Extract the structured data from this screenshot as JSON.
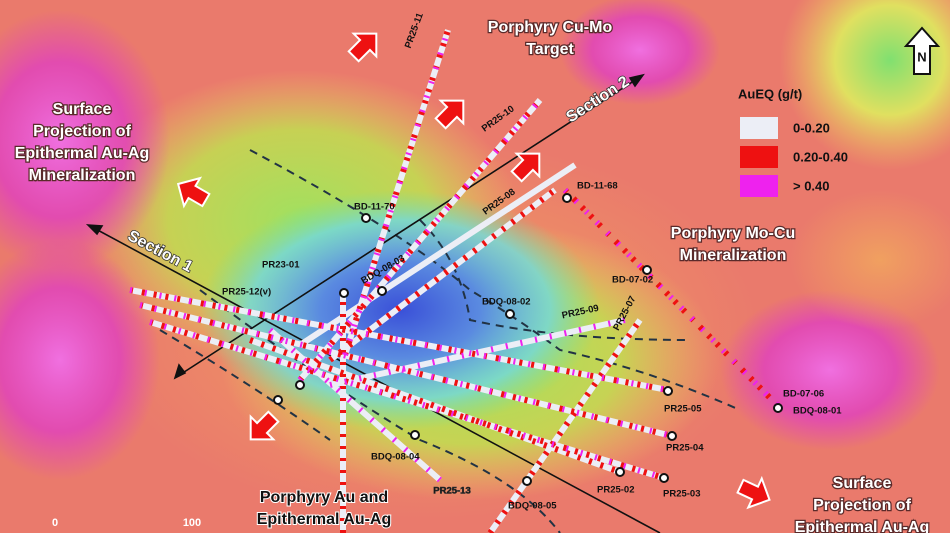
{
  "regions": [
    {
      "lines": [
        "Porphyry Cu-Mo",
        "Target"
      ]
    },
    {
      "lines": [
        "Surface",
        "Projection of",
        "Epithermal Au-Ag",
        "Mineralization"
      ]
    },
    {
      "lines": [
        "Porphyry Mo-Cu",
        "Mineralization"
      ]
    },
    {
      "lines": [
        "Porphyry  Au and",
        "Epithermal Au-Ag"
      ]
    },
    {
      "lines": [
        "Surface",
        "Projection of",
        "Epithermal Au-Ag"
      ]
    }
  ],
  "sections": [
    "Section 1",
    "Section 2"
  ],
  "legend": {
    "title": "AuEQ (g/t)",
    "items": [
      {
        "label": "0-0.20",
        "color": "#eceef6"
      },
      {
        "label": "0.20-0.40",
        "color": "#ee1111"
      },
      {
        "label": "> 0.40",
        "color": "#ee22ee"
      }
    ]
  },
  "north": "N",
  "scale": [
    "0",
    "100"
  ],
  "drill_holes": [
    "PR25-11",
    "PR25-10",
    "PR25-08",
    "BD-11-68",
    "BD-11-70",
    "PR23-01",
    "BDQ-08-03",
    "PR25-12(v)",
    "BDQ-08-02",
    "PR25-09",
    "PR25-07",
    "BD-07-02",
    "BD-07-06",
    "BDQ-08-01",
    "PR25-05",
    "PR25-04",
    "PR25-03",
    "PR25-02",
    "BDQ-08-04",
    "PR25-13",
    "BDQ-08-05"
  ]
}
